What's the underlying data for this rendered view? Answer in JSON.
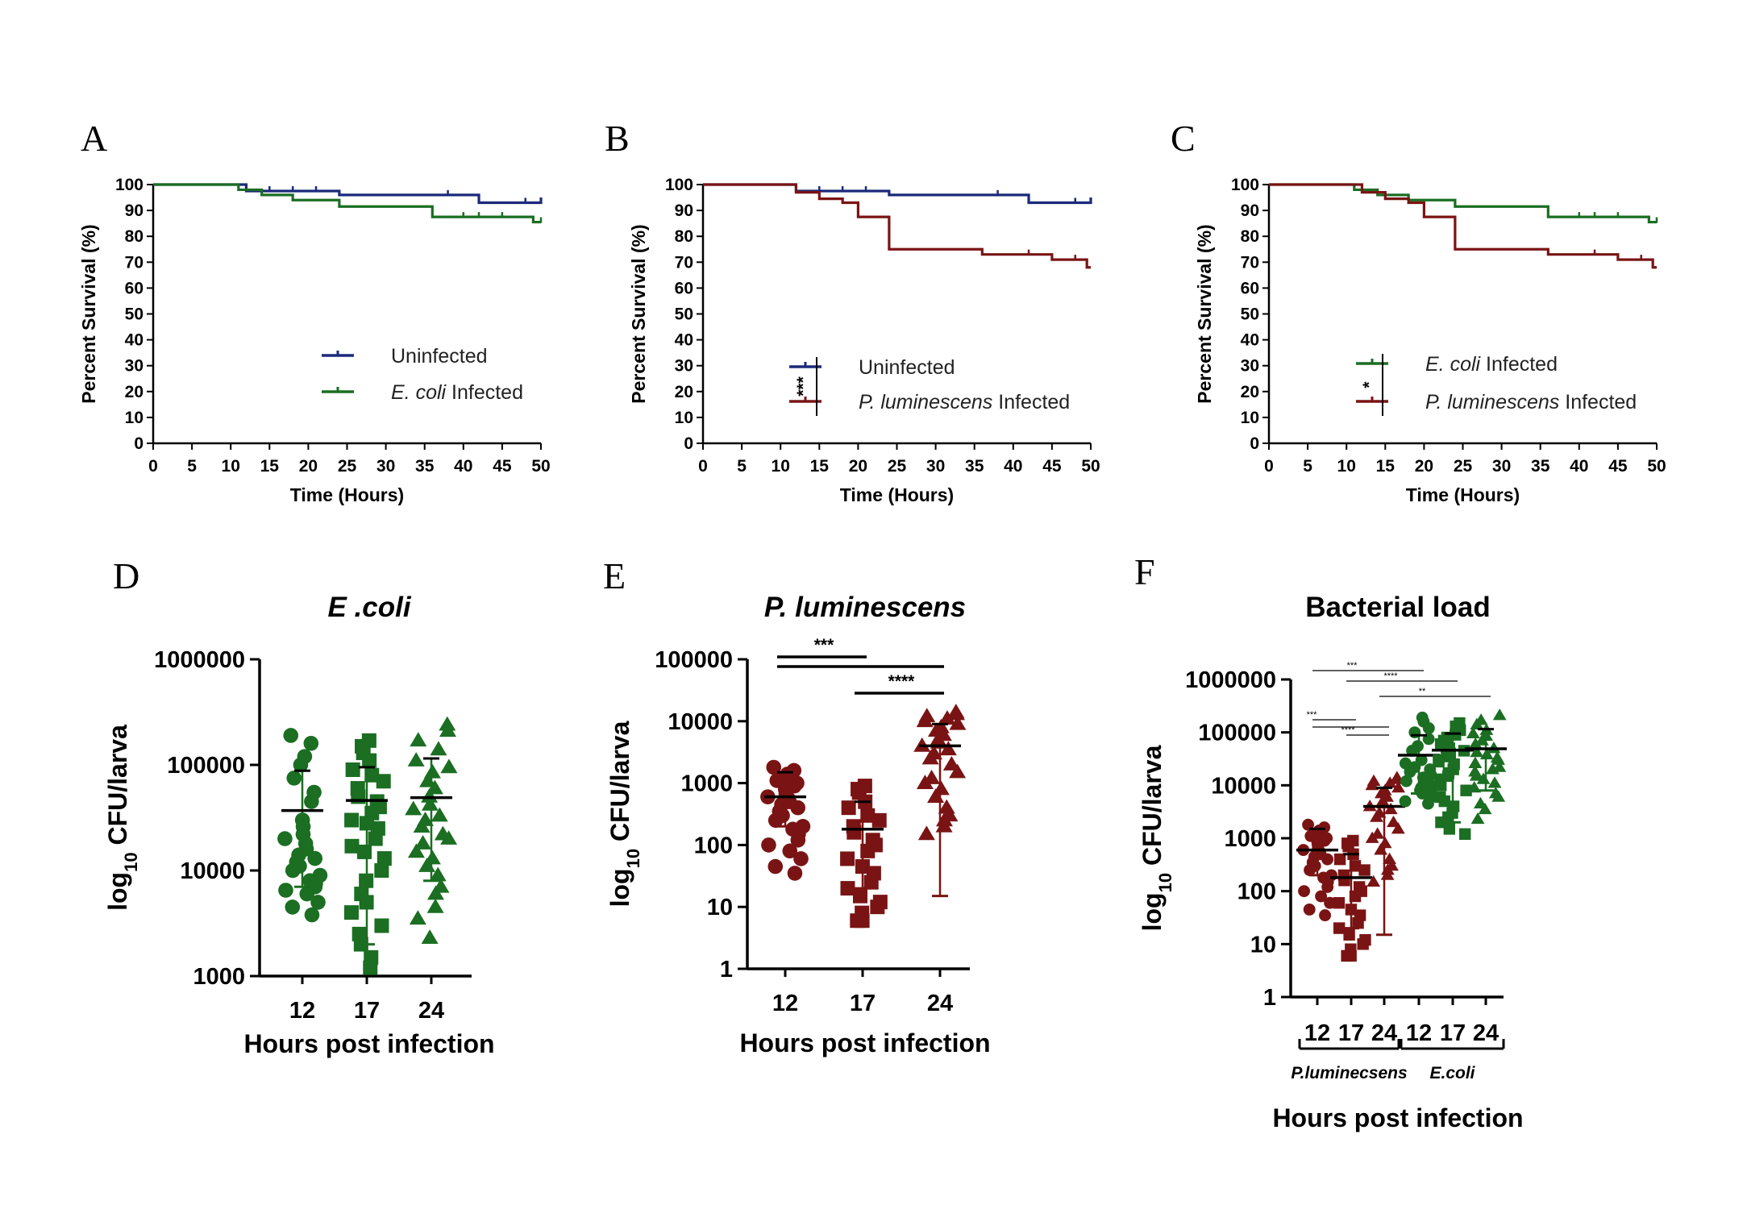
{
  "colors": {
    "uninfected": "#1b2a7a",
    "ecoli": "#1b6e22",
    "pluminescens": "#7a1414",
    "axis": "#000000"
  },
  "chart_data": [
    {
      "panel": "A",
      "type": "line",
      "subtype": "kaplan-meier",
      "xlabel": "Time (Hours)",
      "ylabel": "Percent Survival (%)",
      "xlim": [
        0,
        50
      ],
      "ylim": [
        0,
        100
      ],
      "xticks": [
        "0",
        "5",
        "10",
        "15",
        "20",
        "25",
        "30",
        "35",
        "40",
        "45",
        "50"
      ],
      "yticks": [
        "0",
        "10",
        "20",
        "30",
        "40",
        "50",
        "60",
        "70",
        "80",
        "90",
        "100"
      ],
      "legend_position": "bottom-right",
      "significance": "",
      "series": [
        {
          "name": "Uninfected",
          "color_key": "uninfected",
          "steps": [
            [
              0,
              100
            ],
            [
              12,
              97.5
            ],
            [
              24,
              96
            ],
            [
              42,
              93
            ],
            [
              48,
              93
            ],
            [
              50,
              95
            ]
          ],
          "censors": [
            12,
            15,
            18,
            21,
            38,
            42,
            48
          ]
        },
        {
          "name": "E. coli Infected",
          "name_italic": "E. coli",
          "name_rest": " Infected",
          "color_key": "ecoli",
          "steps": [
            [
              0,
              100
            ],
            [
              11,
              98
            ],
            [
              14,
              96
            ],
            [
              18,
              94
            ],
            [
              24,
              91.5
            ],
            [
              36,
              87.5
            ],
            [
              49,
              85.5
            ],
            [
              50,
              85.5
            ]
          ],
          "censors": [
            40,
            42,
            45,
            50
          ]
        }
      ]
    },
    {
      "panel": "B",
      "type": "line",
      "subtype": "kaplan-meier",
      "xlabel": "Time (Hours)",
      "ylabel": "Percent Survival (%)",
      "xlim": [
        0,
        50
      ],
      "ylim": [
        0,
        100
      ],
      "xticks": [
        "0",
        "5",
        "10",
        "15",
        "20",
        "25",
        "30",
        "35",
        "40",
        "45",
        "50"
      ],
      "yticks": [
        "0",
        "10",
        "20",
        "30",
        "40",
        "50",
        "60",
        "70",
        "80",
        "90",
        "100"
      ],
      "legend_position": "bottom-right",
      "significance": "***",
      "series": [
        {
          "name": "Uninfected",
          "color_key": "uninfected",
          "steps": [
            [
              0,
              100
            ],
            [
              12,
              97.5
            ],
            [
              24,
              96
            ],
            [
              42,
              93
            ],
            [
              48,
              93
            ],
            [
              50,
              95
            ]
          ],
          "censors": [
            12,
            15,
            18,
            21,
            38,
            42,
            48
          ]
        },
        {
          "name": "P. luminescens Infected",
          "name_italic": "P. luminescens",
          "name_rest": " Infected",
          "color_key": "pluminescens",
          "steps": [
            [
              0,
              100
            ],
            [
              12,
              97
            ],
            [
              15,
              94.5
            ],
            [
              18,
              93
            ],
            [
              20,
              87.5
            ],
            [
              24,
              75
            ],
            [
              36,
              73
            ],
            [
              45,
              71
            ],
            [
              49.5,
              68
            ],
            [
              50,
              68
            ]
          ],
          "censors": [
            42,
            45,
            48
          ]
        }
      ]
    },
    {
      "panel": "C",
      "type": "line",
      "subtype": "kaplan-meier",
      "xlabel": "Time (Hours)",
      "ylabel": "Percent Survival (%)",
      "xlim": [
        0,
        50
      ],
      "ylim": [
        0,
        100
      ],
      "xticks": [
        "0",
        "5",
        "10",
        "15",
        "20",
        "25",
        "30",
        "35",
        "40",
        "45",
        "50"
      ],
      "yticks": [
        "0",
        "10",
        "20",
        "30",
        "40",
        "50",
        "60",
        "70",
        "80",
        "90",
        "100"
      ],
      "legend_position": "bottom-right",
      "significance": "*",
      "series": [
        {
          "name": "E. coli Infected",
          "name_italic": "E. coli",
          "name_rest": " Infected",
          "color_key": "ecoli",
          "steps": [
            [
              0,
              100
            ],
            [
              11,
              98
            ],
            [
              14,
              96
            ],
            [
              18,
              94
            ],
            [
              24,
              91.5
            ],
            [
              36,
              87.5
            ],
            [
              49,
              85.5
            ],
            [
              50,
              85.5
            ]
          ],
          "censors": [
            40,
            42,
            45,
            50
          ]
        },
        {
          "name": "P. luminescens Infected",
          "name_italic": "P. luminescens",
          "name_rest": " Infected",
          "color_key": "pluminescens",
          "steps": [
            [
              0,
              100
            ],
            [
              12,
              97
            ],
            [
              15,
              94.5
            ],
            [
              18,
              93
            ],
            [
              20,
              87.5
            ],
            [
              24,
              75
            ],
            [
              36,
              73
            ],
            [
              45,
              71
            ],
            [
              49.5,
              68
            ],
            [
              50,
              68
            ]
          ],
          "censors": [
            42,
            45,
            48
          ]
        }
      ]
    },
    {
      "panel": "D",
      "type": "scatter",
      "title": "E .coli",
      "title_italic": true,
      "xlabel": "Hours post infection",
      "ylabel_main": "log",
      "ylabel_sub": "10",
      "ylabel_rest": " CFU/larva",
      "yscale": "log",
      "ylim": [
        1000,
        1000000
      ],
      "yticks": [
        "1000",
        "10000",
        "100000",
        "1000000"
      ],
      "categories": [
        "12",
        "17",
        "24"
      ],
      "groups": [
        {
          "category": "12",
          "marker": "circle",
          "color_key": "ecoli",
          "mean": 37000,
          "sd_low": 7000,
          "sd_high": 88000,
          "values": [
            190000,
            160000,
            120000,
            100000,
            75000,
            55000,
            45000,
            30000,
            26000,
            22000,
            20000,
            18000,
            16000,
            14000,
            13000,
            12000,
            11000,
            10000,
            9000,
            8000,
            7500,
            7000,
            6500,
            6000,
            5000,
            4500,
            3800
          ]
        },
        {
          "category": "17",
          "marker": "square",
          "color_key": "ecoli",
          "mean": 46000,
          "sd_low": 2000,
          "sd_high": 95000,
          "values": [
            170000,
            150000,
            130000,
            110000,
            90000,
            80000,
            70000,
            60000,
            50000,
            45000,
            40000,
            35000,
            30000,
            28000,
            25000,
            20000,
            17000,
            15000,
            13000,
            10000,
            8000,
            6000,
            5000,
            4000,
            3000,
            2500,
            2000,
            1500,
            1200
          ]
        },
        {
          "category": "24",
          "marker": "triangle",
          "color_key": "ecoli",
          "mean": 49000,
          "sd_low": 8000,
          "sd_high": 115000,
          "values": [
            240000,
            210000,
            170000,
            140000,
            110000,
            95000,
            85000,
            70000,
            60000,
            50000,
            42000,
            38000,
            33000,
            30000,
            26000,
            22000,
            20000,
            18000,
            15000,
            13000,
            11000,
            9000,
            7000,
            6000,
            4500,
            3500,
            2300
          ]
        }
      ],
      "significance": []
    },
    {
      "panel": "E",
      "type": "scatter",
      "title": "P. luminescens",
      "title_italic": true,
      "xlabel": "Hours post infection",
      "ylabel_main": "log",
      "ylabel_sub": "10",
      "ylabel_rest": " CFU/larva",
      "yscale": "log",
      "ylim": [
        1,
        100000
      ],
      "yticks": [
        "1",
        "10",
        "100",
        "1000",
        "10000",
        "100000"
      ],
      "categories": [
        "12",
        "17",
        "24"
      ],
      "groups": [
        {
          "category": "12",
          "marker": "circle",
          "color_key": "pluminescens",
          "mean": 600,
          "sd_low": 200,
          "sd_high": 1500,
          "values": [
            1800,
            1600,
            1400,
            1200,
            1100,
            1000,
            900,
            800,
            700,
            650,
            600,
            550,
            500,
            450,
            400,
            350,
            300,
            250,
            200,
            180,
            150,
            120,
            100,
            80,
            60,
            45,
            35
          ]
        },
        {
          "category": "17",
          "marker": "square",
          "color_key": "pluminescens",
          "mean": 180,
          "sd_low": 20,
          "sd_high": 500,
          "values": [
            900,
            800,
            700,
            500,
            400,
            300,
            250,
            200,
            160,
            120,
            100,
            80,
            60,
            45,
            35,
            25,
            20,
            15,
            12,
            10,
            8,
            6,
            6
          ]
        },
        {
          "category": "24",
          "marker": "triangle",
          "color_key": "pluminescens",
          "mean": 4000,
          "sd_low": 15,
          "sd_high": 9000,
          "values": [
            14000,
            13000,
            12000,
            11000,
            10000,
            9000,
            8000,
            7000,
            6000,
            5000,
            4500,
            4000,
            3500,
            3000,
            2500,
            2000,
            1500,
            1200,
            1000,
            800,
            600,
            400,
            300,
            250,
            200,
            150
          ]
        }
      ],
      "significance": [
        {
          "from": "12",
          "to": "17",
          "label": "***"
        },
        {
          "from": "12",
          "to": "24",
          "label": ""
        },
        {
          "from": "17",
          "to": "24",
          "label": "****"
        }
      ]
    },
    {
      "panel": "F",
      "type": "scatter",
      "title": "Bacterial load",
      "title_italic": false,
      "xlabel": "Hours post infection",
      "ylabel_main": "log",
      "ylabel_sub": "10",
      "ylabel_rest": " CFU/larva",
      "yscale": "log",
      "ylim": [
        1,
        1000000
      ],
      "yticks": [
        "1",
        "10",
        "100",
        "1000",
        "10000",
        "100000",
        "1000000"
      ],
      "categories": [
        "12",
        "17",
        "24",
        "12",
        "17",
        "24"
      ],
      "group_labels": [
        {
          "label": "P.luminecsens",
          "span": [
            0,
            2
          ]
        },
        {
          "label": "E.coli",
          "span": [
            3,
            5
          ]
        }
      ],
      "groups": [
        {
          "category": "12",
          "marker": "circle",
          "color_key": "pluminescens",
          "mean": 600,
          "sd_low": 200,
          "sd_high": 1500,
          "values": [
            1800,
            1600,
            1400,
            1200,
            1100,
            1000,
            900,
            800,
            700,
            650,
            600,
            550,
            500,
            450,
            400,
            350,
            300,
            250,
            200,
            180,
            150,
            120,
            100,
            80,
            60,
            45,
            35
          ]
        },
        {
          "category": "17",
          "marker": "square",
          "color_key": "pluminescens",
          "mean": 180,
          "sd_low": 20,
          "sd_high": 500,
          "values": [
            900,
            800,
            700,
            500,
            400,
            300,
            250,
            200,
            160,
            120,
            100,
            80,
            60,
            45,
            35,
            25,
            20,
            15,
            12,
            10,
            8,
            6,
            6
          ]
        },
        {
          "category": "24",
          "marker": "triangle",
          "color_key": "pluminescens",
          "mean": 4000,
          "sd_low": 15,
          "sd_high": 9000,
          "values": [
            14000,
            13000,
            12000,
            11000,
            10000,
            9000,
            8000,
            7000,
            6000,
            5000,
            4500,
            4000,
            3500,
            3000,
            2500,
            2000,
            1500,
            1200,
            1000,
            800,
            600,
            400,
            300,
            250,
            200,
            150
          ]
        },
        {
          "category": "12",
          "marker": "circle",
          "color_key": "ecoli",
          "mean": 37000,
          "sd_low": 7000,
          "sd_high": 88000,
          "values": [
            190000,
            160000,
            120000,
            100000,
            75000,
            55000,
            45000,
            30000,
            26000,
            22000,
            20000,
            18000,
            16000,
            14000,
            13000,
            12000,
            11000,
            10000,
            9000,
            8000,
            7500,
            7000,
            6500,
            6000,
            5000,
            4500
          ]
        },
        {
          "category": "17",
          "marker": "square",
          "color_key": "ecoli",
          "mean": 46000,
          "sd_low": 2000,
          "sd_high": 95000,
          "values": [
            150000,
            130000,
            110000,
            90000,
            80000,
            70000,
            60000,
            50000,
            45000,
            40000,
            35000,
            30000,
            28000,
            25000,
            20000,
            17000,
            15000,
            13000,
            10000,
            8000,
            6000,
            5000,
            4000,
            3000,
            2500,
            2000,
            1500,
            1200
          ]
        },
        {
          "category": "24",
          "marker": "triangle",
          "color_key": "ecoli",
          "mean": 49000,
          "sd_low": 8000,
          "sd_high": 115000,
          "values": [
            210000,
            170000,
            140000,
            110000,
            95000,
            85000,
            70000,
            60000,
            50000,
            42000,
            38000,
            33000,
            30000,
            26000,
            22000,
            20000,
            18000,
            15000,
            13000,
            11000,
            9000,
            7000,
            6000,
            4500,
            3500,
            2300
          ]
        }
      ],
      "significance": [
        {
          "from": 0,
          "to": 3,
          "label": "***"
        },
        {
          "from": 1,
          "to": 4,
          "label": "****"
        },
        {
          "from": 2,
          "to": 5,
          "label": "**"
        },
        {
          "from": 0,
          "to": 1,
          "label": "***"
        },
        {
          "from": 0,
          "to": 2,
          "label": ""
        },
        {
          "from": 1,
          "to": 2,
          "label": "****"
        }
      ]
    }
  ]
}
